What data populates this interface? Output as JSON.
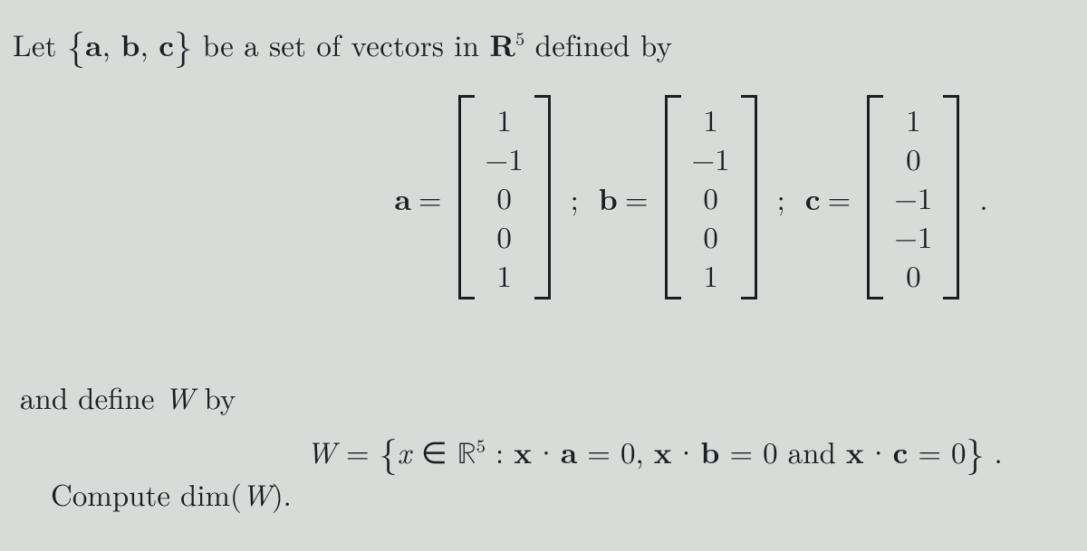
{
  "intro": {
    "prefix": "Let ",
    "set_open": "{",
    "set_a": "a",
    "set_sep1": ", ",
    "set_b": " b",
    "set_sep2": ", ",
    "set_c": "c",
    "set_close": "}",
    "mid": " be a set of vectors in ",
    "space_R": "R",
    "space_exp": "5",
    "suffix": " defined by"
  },
  "vectors": {
    "a": {
      "label": "a",
      "eq": "=",
      "entries": [
        "1",
        "−1",
        "0",
        "0",
        "1"
      ]
    },
    "b": {
      "label": "b",
      "eq": "=",
      "entries": [
        "1",
        "−1",
        "0",
        "0",
        "1"
      ]
    },
    "c": {
      "label": "c",
      "eq": "=",
      "entries": [
        "1",
        "0",
        "−1",
        "−1",
        "0"
      ]
    },
    "sep": ";",
    "period": "."
  },
  "left": {
    "line1_pre": "and define ",
    "line1_W": "W",
    "line1_post": " by",
    "line2_pre": "Compute ",
    "line2_dim": "dim",
    "line2_paren_open": "(",
    "line2_W": "W",
    "line2_paren_close": ")."
  },
  "wdef": {
    "W": "W",
    "eq": " = ",
    "brace_open": "{",
    "x": "x",
    "in": " ∈ ",
    "R": "ℝ",
    "exp": "5",
    "colon": " : ",
    "xa_x": "x",
    "xa_dot": "·",
    "xa_a": "a",
    "xa_rhs": " = 0, ",
    "xb_x": "x",
    "xb_dot": "·",
    "xb_b": "b",
    "xb_rhs": " = 0 ",
    "and": "and ",
    "xc_x": "x",
    "xc_dot": "·",
    "xc_c": "c",
    "xc_rhs": " = 0",
    "brace_close": "}",
    "tail": " ."
  },
  "style": {
    "background": "#d9dbd9",
    "text_color": "#1a1f23",
    "font_size_pt": 24,
    "bracket_stroke": 3
  }
}
